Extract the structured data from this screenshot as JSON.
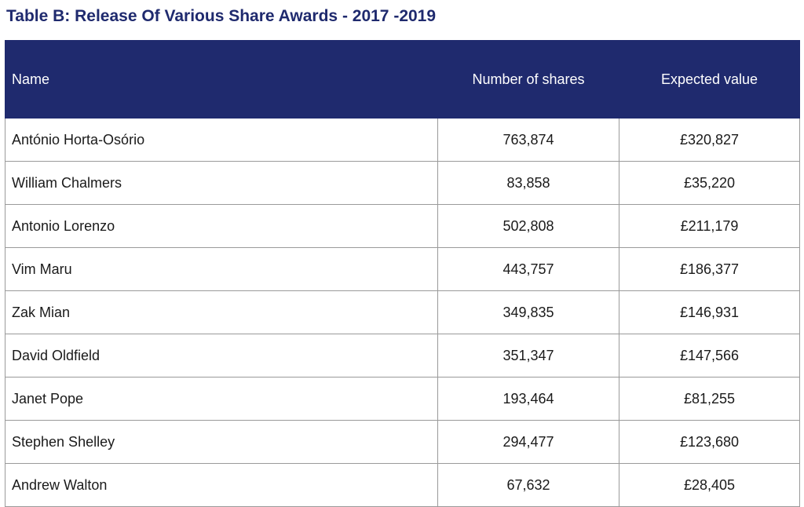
{
  "title": "Table B: Release Of Various Share Awards - 2017 -2019",
  "table": {
    "headers": [
      "Name",
      "Number of shares",
      "Expected value"
    ],
    "rows": [
      {
        "name": "António Horta-Osório",
        "shares": "763,874",
        "value": "£320,827"
      },
      {
        "name": "William Chalmers",
        "shares": "83,858",
        "value": "£35,220"
      },
      {
        "name": "Antonio Lorenzo",
        "shares": "502,808",
        "value": "£211,179"
      },
      {
        "name": "Vim Maru",
        "shares": "443,757",
        "value": "£186,377"
      },
      {
        "name": "Zak Mian",
        "shares": "349,835",
        "value": "£146,931"
      },
      {
        "name": "David Oldfield",
        "shares": "351,347",
        "value": "£147,566"
      },
      {
        "name": "Janet Pope",
        "shares": "193,464",
        "value": "£81,255"
      },
      {
        "name": "Stephen Shelley",
        "shares": "294,477",
        "value": "£123,680"
      },
      {
        "name": "Andrew Walton",
        "shares": "67,632",
        "value": "£28,405"
      }
    ]
  },
  "colors": {
    "header_background": "#1f2a6e",
    "title_text": "#1f2a6e",
    "header_text": "#ffffff",
    "grid_line": "#9a9a9a"
  }
}
